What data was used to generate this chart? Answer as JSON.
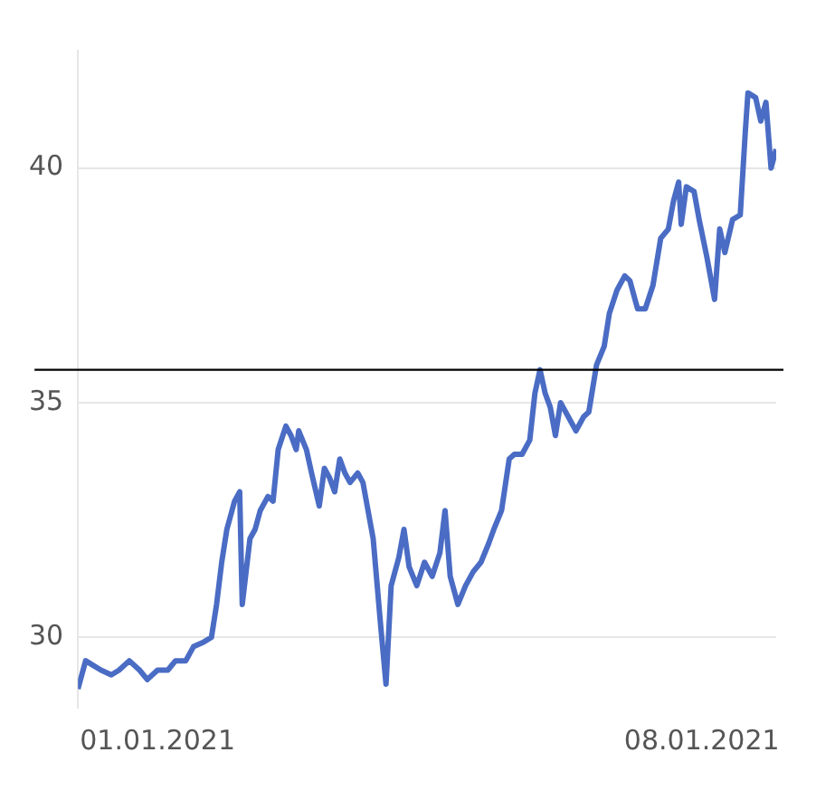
{
  "chart_data": {
    "type": "line",
    "x": [
      "2020-12-01",
      "2020-12-04",
      "2020-12-07",
      "2020-12-10",
      "2020-12-14",
      "2020-12-17",
      "2020-12-21",
      "2020-12-25",
      "2020-12-28",
      "2021-01-01",
      "2021-01-05",
      "2021-01-08",
      "2021-01-12",
      "2021-01-15",
      "2021-01-19",
      "2021-01-22",
      "2021-01-24",
      "2021-01-26",
      "2021-01-28",
      "2021-01-31",
      "2021-02-02",
      "2021-02-03",
      "2021-02-06",
      "2021-02-08",
      "2021-02-10",
      "2021-02-13",
      "2021-02-15",
      "2021-02-17",
      "2021-02-20",
      "2021-02-22",
      "2021-02-24",
      "2021-02-25",
      "2021-02-28",
      "2021-03-02",
      "2021-03-05",
      "2021-03-07",
      "2021-03-09",
      "2021-03-11",
      "2021-03-13",
      "2021-03-15",
      "2021-03-17",
      "2021-03-20",
      "2021-03-22",
      "2021-03-26",
      "2021-03-29",
      "2021-03-31",
      "2021-04-02",
      "2021-04-05",
      "2021-04-07",
      "2021-04-09",
      "2021-04-12",
      "2021-04-15",
      "2021-04-18",
      "2021-04-21",
      "2021-04-23",
      "2021-04-25",
      "2021-04-28",
      "2021-05-01",
      "2021-05-04",
      "2021-05-07",
      "2021-05-10",
      "2021-05-12",
      "2021-05-15",
      "2021-05-18",
      "2021-05-20",
      "2021-05-23",
      "2021-05-26",
      "2021-05-28",
      "2021-05-30",
      "2021-06-01",
      "2021-06-03",
      "2021-06-05",
      "2021-06-07",
      "2021-06-10",
      "2021-06-13",
      "2021-06-16",
      "2021-06-18",
      "2021-06-21",
      "2021-06-24",
      "2021-06-26",
      "2021-06-29",
      "2021-07-02",
      "2021-07-04",
      "2021-07-07",
      "2021-07-10",
      "2021-07-13",
      "2021-07-16",
      "2021-07-19",
      "2021-07-21",
      "2021-07-23",
      "2021-07-24",
      "2021-07-26",
      "2021-07-29",
      "2021-07-31",
      "2021-08-03",
      "2021-08-06",
      "2021-08-08",
      "2021-08-10",
      "2021-08-13",
      "2021-08-16",
      "2021-08-18",
      "2021-08-19",
      "2021-08-22",
      "2021-08-24",
      "2021-08-26",
      "2021-08-28",
      "2021-08-30"
    ],
    "series": [
      {
        "color": "#4a6cc4",
        "values": [
          28.9,
          29.5,
          29.4,
          29.3,
          29.2,
          29.3,
          29.5,
          29.3,
          29.1,
          29.3,
          29.3,
          29.5,
          29.5,
          29.8,
          29.9,
          30.0,
          30.7,
          31.6,
          32.3,
          32.9,
          33.1,
          30.7,
          32.1,
          32.3,
          32.7,
          33.0,
          32.9,
          34.0,
          34.5,
          34.3,
          34.0,
          34.4,
          34.0,
          33.5,
          32.8,
          33.6,
          33.4,
          33.1,
          33.8,
          33.5,
          33.3,
          33.5,
          33.3,
          32.1,
          30.2,
          29.0,
          31.1,
          31.7,
          32.3,
          31.5,
          31.1,
          31.6,
          31.3,
          31.8,
          32.7,
          31.3,
          30.7,
          31.1,
          31.4,
          31.6,
          32.0,
          32.3,
          32.7,
          33.8,
          33.9,
          33.9,
          34.2,
          35.2,
          35.7,
          35.2,
          34.9,
          34.3,
          35.0,
          34.7,
          34.4,
          34.7,
          34.8,
          35.8,
          36.2,
          36.9,
          37.4,
          37.7,
          37.6,
          37.0,
          37.0,
          37.5,
          38.5,
          38.7,
          39.3,
          39.7,
          38.8,
          39.6,
          39.5,
          38.9,
          38.1,
          37.2,
          38.7,
          38.2,
          38.9,
          39.0,
          40.8,
          41.6,
          41.5,
          41.0,
          41.4,
          40.0,
          40.4
        ]
      }
    ],
    "xlim": [
      "2020-12-01",
      "2021-08-30"
    ],
    "xticks": [
      {
        "value": "2021-01-01",
        "label": "01.01.2021"
      },
      {
        "value": "2021-08-01",
        "label": "08.01.2021"
      }
    ],
    "ylim": [
      28.5,
      42.5
    ],
    "yticks": [
      30,
      35,
      40
    ],
    "grid": "y",
    "legend": false,
    "marker": "none",
    "line_style": "solid",
    "ref_lines": [
      {
        "axis": "y",
        "value": 35.7,
        "color": "#000000"
      }
    ]
  }
}
